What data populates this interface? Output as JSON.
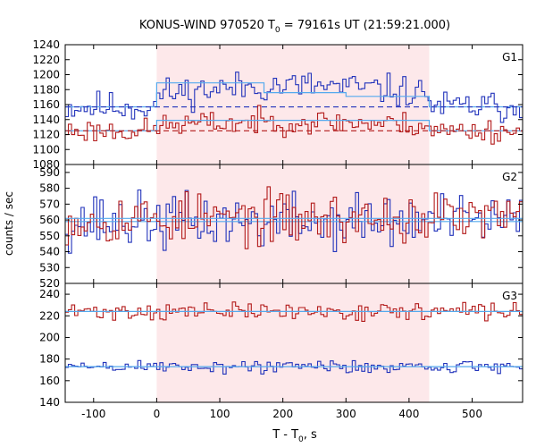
{
  "chart_data": {
    "type": "line",
    "title": "KONUS-WIND 970520 T",
    "title_sub": "0",
    "title_rest": " = 79161s UT (21:59:21.000)",
    "ylabel": "counts / sec",
    "xlabel_main": "T - T",
    "xlabel_sub": "0",
    "xlabel_rest": ", s",
    "x_range": [
      -145,
      580
    ],
    "x_ticks": [
      "-100",
      "0",
      "100",
      "200",
      "300",
      "400",
      "500"
    ],
    "x_tick_values": [
      -100,
      0,
      100,
      200,
      300,
      400,
      500
    ],
    "shaded_interval": [
      0,
      432
    ],
    "shade_color": "#fde8ea",
    "colors": {
      "red": "#b31b1b",
      "blue": "#2233bb",
      "fit": "#55aaee"
    },
    "panels": [
      {
        "name": "G1",
        "ylim": [
          1080,
          1240
        ],
        "y_ticks": [
          1080,
          1100,
          1120,
          1140,
          1160,
          1180,
          1200,
          1220,
          1240
        ],
        "series": [
          {
            "color": "blue",
            "mean": 1157,
            "amplitude": 13,
            "excess": 28,
            "seed": 11,
            "fit_steps": [
              [
                -145,
                1157
              ],
              [
                0,
                1157
              ],
              [
                0,
                1189
              ],
              [
                170,
                1189
              ],
              [
                170,
                1176
              ],
              [
                300,
                1176
              ],
              [
                300,
                1171
              ],
              [
                432,
                1171
              ],
              [
                432,
                1157
              ],
              [
                580,
                1157
              ]
            ],
            "baseline": 1157
          },
          {
            "color": "red",
            "mean": 1125,
            "amplitude": 10,
            "excess": 12,
            "seed": 23,
            "fit_steps": [
              [
                -145,
                1125
              ],
              [
                0,
                1125
              ],
              [
                0,
                1139
              ],
              [
                432,
                1139
              ],
              [
                432,
                1125
              ],
              [
                580,
                1125
              ]
            ],
            "baseline": 1125
          }
        ]
      },
      {
        "name": "G2",
        "ylim": [
          520,
          595
        ],
        "y_ticks": [
          520,
          530,
          540,
          550,
          560,
          570,
          580,
          590
        ],
        "series": [
          {
            "color": "blue",
            "mean": 559,
            "amplitude": 11,
            "excess": 0,
            "seed": 37,
            "fit_steps": [
              [
                -145,
                559
              ],
              [
                580,
                559
              ]
            ],
            "baseline": null
          },
          {
            "color": "red",
            "mean": 561,
            "amplitude": 10,
            "excess": 0,
            "seed": 53,
            "fit_steps": [
              [
                -145,
                561
              ],
              [
                580,
                561
              ]
            ],
            "baseline": null
          }
        ]
      },
      {
        "name": "G3",
        "ylim": [
          140,
          250
        ],
        "y_ticks": [
          140,
          160,
          180,
          200,
          220,
          240
        ],
        "series": [
          {
            "color": "red",
            "mean": 224,
            "amplitude": 5,
            "excess": 0,
            "seed": 71,
            "fit_steps": [
              [
                -145,
                224
              ],
              [
                580,
                224
              ]
            ],
            "baseline": null
          },
          {
            "color": "blue",
            "mean": 173,
            "amplitude": 4,
            "excess": 0,
            "seed": 89,
            "fit_steps": [
              [
                -145,
                173
              ],
              [
                580,
                173
              ]
            ],
            "baseline": null
          }
        ]
      }
    ],
    "bin_width": 5
  }
}
